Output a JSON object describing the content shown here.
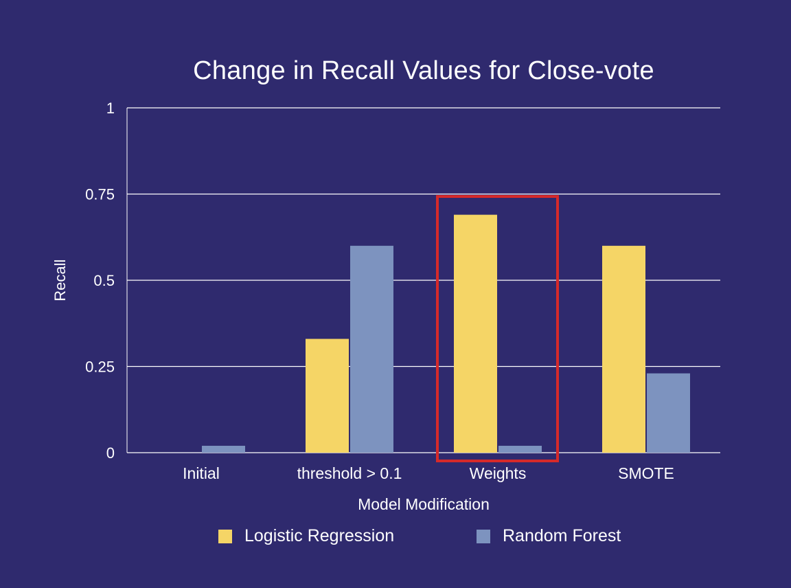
{
  "chart_data": {
    "type": "bar",
    "title": "Change in Recall Values for Close-vote",
    "xlabel": "Model Modification",
    "ylabel": "Recall",
    "categories": [
      "Initial",
      "threshold > 0.1",
      "Weights",
      "SMOTE"
    ],
    "series": [
      {
        "name": "Logistic Regression",
        "values": [
          0,
          0.33,
          0.69,
          0.6
        ],
        "color": "#f5d566"
      },
      {
        "name": "Random Forest",
        "values": [
          0.02,
          0.6,
          0.02,
          0.23
        ],
        "color": "#7d93bf"
      }
    ],
    "ylim": [
      0,
      1
    ],
    "yticks": [
      "0",
      "0.25",
      "0.5",
      "0.75",
      "1"
    ],
    "grid": true,
    "legend_position": "bottom",
    "highlight": {
      "category": "Weights",
      "color": "#d62a2a"
    }
  }
}
